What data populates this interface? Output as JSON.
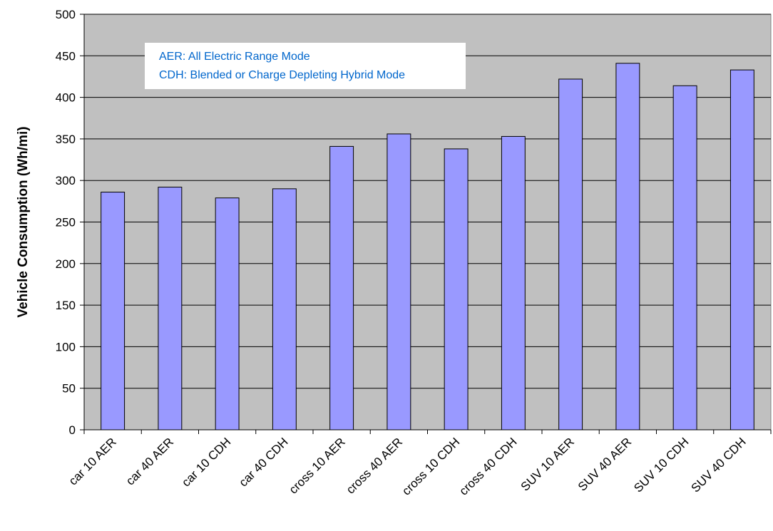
{
  "chart_data": {
    "type": "bar",
    "title": "",
    "xlabel": "",
    "ylabel": "Vehicle Consumption (Wh/mi)",
    "ylim": [
      0,
      500
    ],
    "yticks": [
      0,
      50,
      100,
      150,
      200,
      250,
      300,
      350,
      400,
      450,
      500
    ],
    "grid": true,
    "categories": [
      "car 10 AER",
      "car 40 AER",
      "car 10 CDH",
      "car 40 CDH",
      "cross 10 AER",
      "cross 40 AER",
      "cross 10 CDH",
      "cross 40 CDH",
      "SUV 10 AER",
      "SUV 40 AER",
      "SUV 10 CDH",
      "SUV 40 CDH"
    ],
    "values": [
      286,
      292,
      279,
      290,
      341,
      356,
      338,
      353,
      422,
      441,
      414,
      433
    ],
    "annotation": {
      "lines": [
        "AER: All Electric Range Mode",
        "CDH: Blended or Charge Depleting Hybrid Mode"
      ]
    },
    "colors": {
      "plot_background": "#c0c0c0",
      "bar_fill": "#9999ff",
      "annotation_text": "#0066cc"
    }
  }
}
